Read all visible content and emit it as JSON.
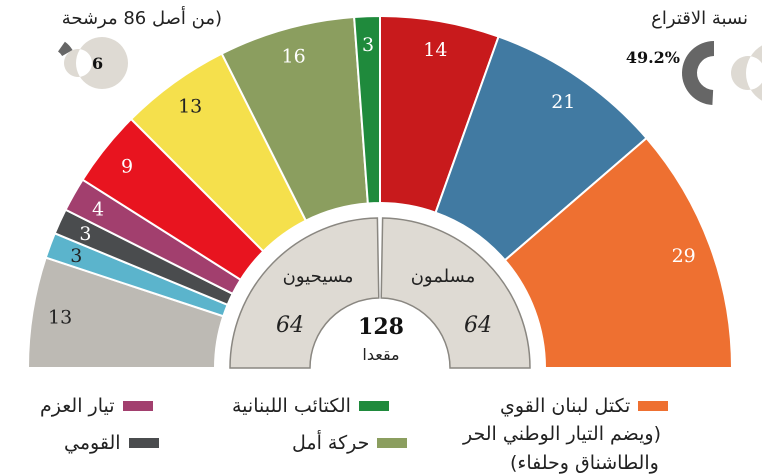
{
  "chart_data": {
    "type": "parliament-semicircle",
    "total_seats": 128,
    "center": {
      "total_label": "128",
      "seats_word": "مقعدا",
      "halves": [
        {
          "name": "مسلمون",
          "value": 64
        },
        {
          "name": "مسيحيون",
          "value": 64
        }
      ]
    },
    "segments": [
      {
        "value": 13,
        "color": "#bdbab4",
        "label_color": "#222222"
      },
      {
        "value": 3,
        "color": "#5bb4cc",
        "label_color": "#222222"
      },
      {
        "value": 3,
        "color": "#4a4c4e",
        "label_color": "#ffffff"
      },
      {
        "value": 4,
        "color": "#a23f6e",
        "label_color": "#ffffff"
      },
      {
        "value": 9,
        "color": "#e8141f",
        "label_color": "#ffffff"
      },
      {
        "value": 13,
        "color": "#f5e04c",
        "label_color": "#222222"
      },
      {
        "value": 16,
        "color": "#8b9e5f",
        "label_color": "#ffffff"
      },
      {
        "value": 3,
        "color": "#1f8a3c",
        "label_color": "#ffffff"
      },
      {
        "value": 14,
        "color": "#c81a1c",
        "label_color": "#ffffff"
      },
      {
        "value": 21,
        "color": "#417aa2",
        "label_color": "#ffffff"
      },
      {
        "value": 29,
        "color": "#ee7031",
        "label_color": "#ffffff"
      }
    ],
    "turnout": {
      "title": "نسبة الاقتراع",
      "value_label": "49.2%",
      "value": 49.2,
      "fill_color": "#666666",
      "track_color": "#dedad3"
    },
    "women": {
      "title": "(من أصل 86 مرشحة",
      "value_label": "6",
      "value": 6,
      "total": 86,
      "fill_color": "#666666",
      "track_color": "#dedad3"
    }
  },
  "legend": [
    {
      "label": "تكتل لبنان القوي",
      "color": "#ee7031"
    },
    {
      "label": "الكتائب اللبنانية",
      "color": "#1f8a3c"
    },
    {
      "label": "تيار العزم",
      "color": "#a23f6e"
    },
    {
      "label": "حركة أمل",
      "color": "#8b9e5f"
    },
    {
      "label": "القومي",
      "color": "#4a4c4e"
    }
  ],
  "legend_sub": [
    "(ويضم التيار الوطني الحر",
    "والطاشناق وحلفاء)"
  ]
}
